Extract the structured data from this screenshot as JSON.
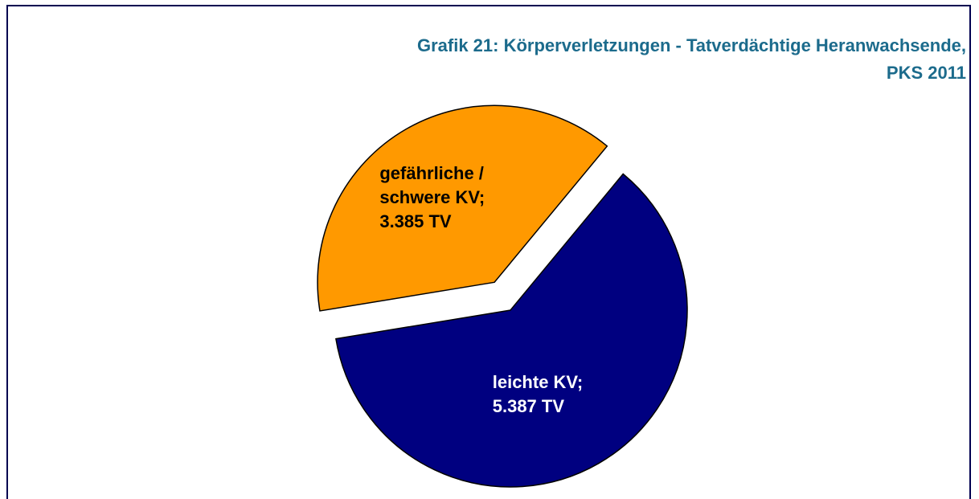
{
  "chart_data": {
    "type": "pie",
    "title": "Grafik 21: Körperverletzungen - Tatverdächtige Heranwachsende,",
    "subtitle": "PKS 2011",
    "categories": [
      "gefährliche / schwere KV;",
      "leichte KV;"
    ],
    "values": [
      3385,
      5387
    ],
    "value_labels": [
      "3.385 TV",
      "5.387 TV"
    ],
    "colors": [
      "#ff9900",
      "#000080"
    ],
    "exploded": [
      true,
      false
    ]
  }
}
